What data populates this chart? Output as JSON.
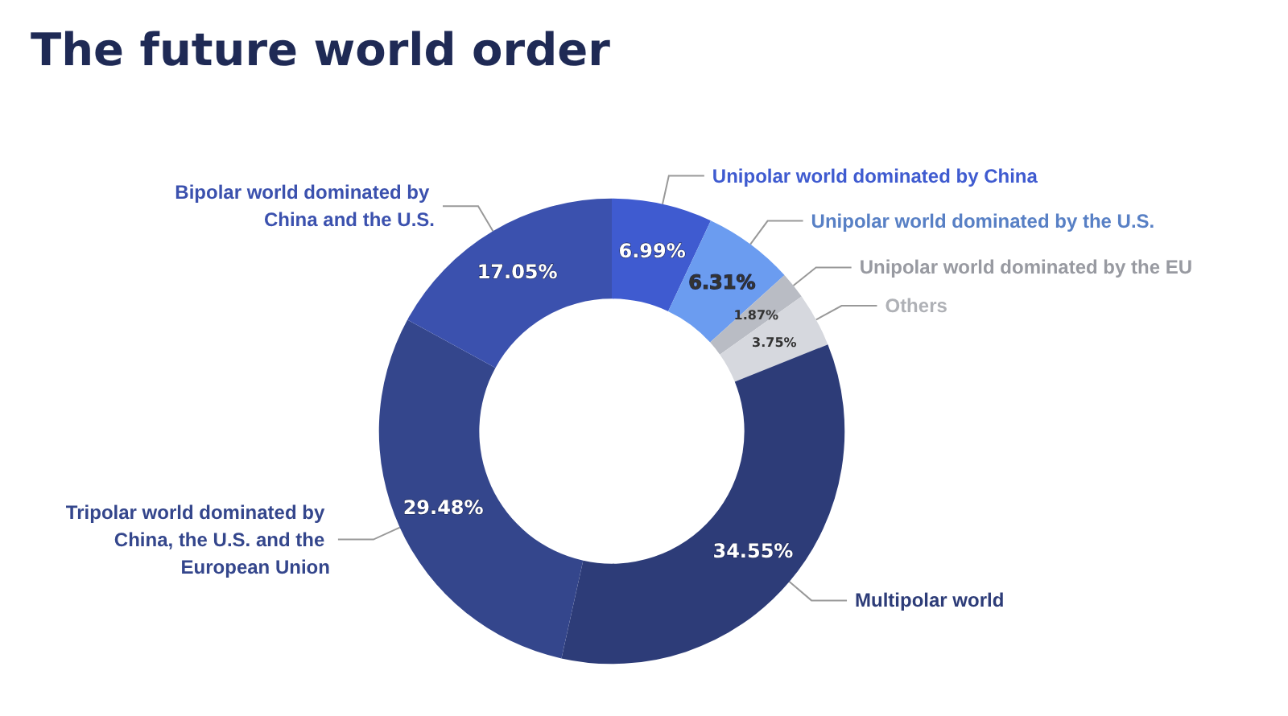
{
  "chart_data": {
    "type": "donut",
    "title": "The future world order",
    "categories": [
      "Unipolar world dominated by China",
      "Unipolar world dominated by the U.S.",
      "Unipolar world dominated by the EU",
      "Others",
      "Multipolar world",
      "Tripolar world dominated by China, the U.S. and the European Union",
      "Bipolar world dominated by China and the U.S."
    ],
    "values": [
      6.99,
      6.31,
      1.87,
      3.75,
      34.55,
      29.48,
      17.05
    ],
    "value_labels": [
      "6.99%",
      "6.31%",
      "1.87%",
      "3.75%",
      "34.55%",
      "29.48%",
      "17.05%"
    ],
    "colors": [
      "#3f5bd0",
      "#6b9cf0",
      "#b9bcc4",
      "#d6d8de",
      "#2d3c78",
      "#34468c",
      "#3b51ae"
    ],
    "legend": false
  }
}
